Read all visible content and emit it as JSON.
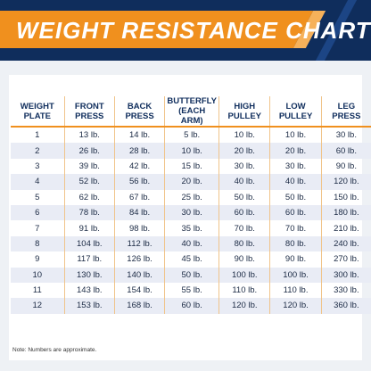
{
  "header": {
    "title": "WEIGHT RESISTANCE CHART"
  },
  "colors": {
    "navy": "#0f2d5c",
    "orange": "#f0901e",
    "row_alt": "#e9ecf5"
  },
  "table": {
    "headers": [
      "WEIGHT\nPLATE",
      "FRONT\nPRESS",
      "BACK\nPRESS",
      "BUTTERFLY\n(EACH ARM)",
      "HIGH\nPULLEY",
      "LOW\nPULLEY",
      "LEG\nPRESS"
    ],
    "rows": [
      [
        "1",
        "13 lb.",
        "14 lb.",
        "5 lb.",
        "10 lb.",
        "10 lb.",
        "30 lb."
      ],
      [
        "2",
        "26 lb.",
        "28 lb.",
        "10 lb.",
        "20 lb.",
        "20 lb.",
        "60 lb."
      ],
      [
        "3",
        "39 lb.",
        "42 lb.",
        "15 lb.",
        "30 lb.",
        "30 lb.",
        "90 lb."
      ],
      [
        "4",
        "52 lb.",
        "56 lb.",
        "20 lb.",
        "40 lb.",
        "40 lb.",
        "120 lb."
      ],
      [
        "5",
        "62 lb.",
        "67 lb.",
        "25 lb.",
        "50 lb.",
        "50 lb.",
        "150 lb."
      ],
      [
        "6",
        "78 lb.",
        "84 lb.",
        "30 lb.",
        "60 lb.",
        "60 lb.",
        "180 lb."
      ],
      [
        "7",
        "91 lb.",
        "98 lb.",
        "35 lb.",
        "70 lb.",
        "70 lb.",
        "210 lb."
      ],
      [
        "8",
        "104 lb.",
        "112 lb.",
        "40 lb.",
        "80 lb.",
        "80 lb.",
        "240 lb."
      ],
      [
        "9",
        "117 lb.",
        "126 lb.",
        "45 lb.",
        "90 lb.",
        "90 lb.",
        "270 lb."
      ],
      [
        "10",
        "130 lb.",
        "140 lb.",
        "50 lb.",
        "100 lb.",
        "100 lb.",
        "300 lb."
      ],
      [
        "11",
        "143 lb.",
        "154 lb.",
        "55 lb.",
        "110 lb.",
        "110 lb.",
        "330 lb."
      ],
      [
        "12",
        "153 lb.",
        "168 lb.",
        "60 lb.",
        "120 lb.",
        "120 lb.",
        "360 lb."
      ]
    ]
  },
  "footer": {
    "note": "Note: Numbers are approximate."
  }
}
